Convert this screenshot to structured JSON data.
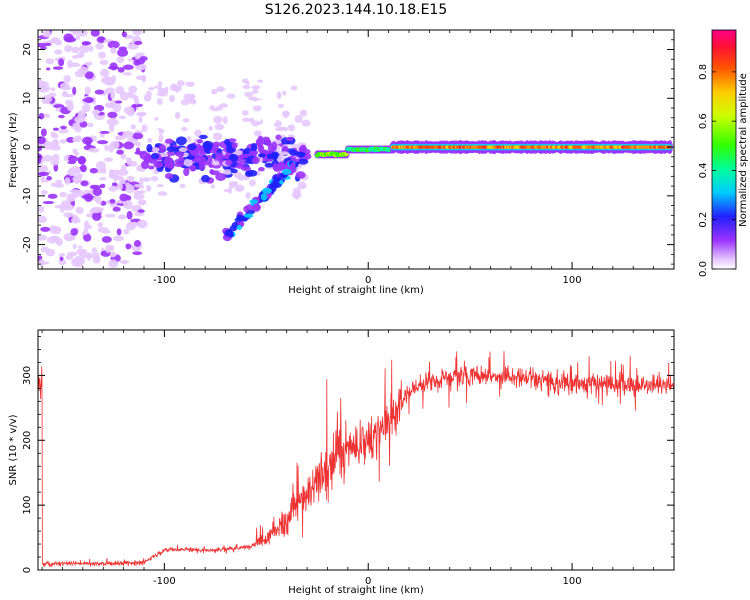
{
  "title": "S126.2023.144.10.18.E15",
  "chart_data": [
    {
      "type": "heatmap",
      "xlabel": "Height of straight line (km)",
      "ylabel": "Frequency (Hz)",
      "xlim": [
        -162,
        150
      ],
      "ylim": [
        -25,
        24
      ],
      "xticks": [
        -100,
        0,
        100
      ],
      "yticks": [
        -20,
        -10,
        0,
        10,
        20
      ],
      "colorbar": {
        "label": "Normalized spectral amplitude",
        "range": [
          0,
          0.97
        ],
        "ticks": [
          0.0,
          0.2,
          0.4,
          0.6,
          0.8
        ]
      },
      "regions": [
        {
          "x": [
            -162,
            -110
          ],
          "freq_spread": 24,
          "amplitude": 0.08
        },
        {
          "x": [
            -110,
            -30
          ],
          "freq_center": -2,
          "freq_spread": 6,
          "amplitude": 0.2
        },
        {
          "x": [
            -70,
            -35
          ],
          "freq_start": -18,
          "freq_end": -3,
          "amplitude": 0.3
        },
        {
          "x": [
            -25,
            -10
          ],
          "freq_center": -1.5,
          "amplitude": 0.75
        },
        {
          "x": [
            -10,
            12
          ],
          "freq_center": -0.5,
          "amplitude": 0.6
        },
        {
          "x": [
            12,
            148
          ],
          "freq_center": 0,
          "amplitude": 0.97
        }
      ]
    },
    {
      "type": "line",
      "xlabel": "Height of straight line (km)",
      "ylabel": "SNR (10 * v/v)",
      "xlim": [
        -162,
        150
      ],
      "ylim": [
        0,
        370
      ],
      "xticks": [
        -100,
        0,
        100
      ],
      "yticks": [
        0,
        100,
        200,
        300
      ],
      "series": [
        {
          "color": "#ee3333",
          "x": [
            -160,
            -140,
            -120,
            -110,
            -100,
            -90,
            -80,
            -70,
            -60,
            -50,
            -40,
            -35,
            -30,
            -25,
            -20,
            -15,
            -10,
            -5,
            0,
            5,
            10,
            15,
            20,
            30,
            40,
            50,
            60,
            70,
            80,
            90,
            100,
            110,
            120,
            130,
            140,
            150
          ],
          "y": [
            10,
            10,
            10,
            12,
            30,
            32,
            30,
            32,
            35,
            45,
            80,
            100,
            110,
            140,
            160,
            175,
            185,
            195,
            200,
            215,
            235,
            255,
            275,
            290,
            295,
            300,
            300,
            300,
            295,
            290,
            288,
            288,
            285,
            285,
            285,
            285
          ]
        }
      ]
    }
  ]
}
